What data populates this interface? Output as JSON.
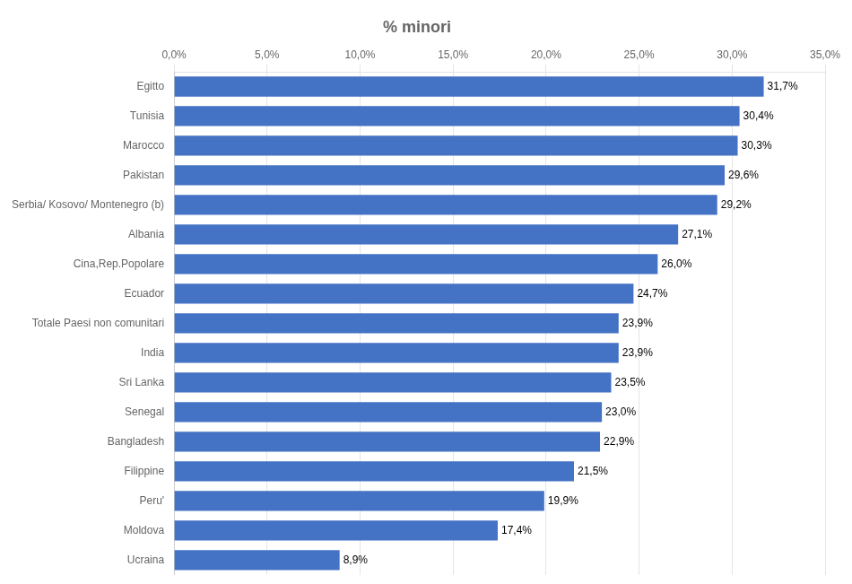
{
  "chart_data": {
    "type": "bar",
    "orientation": "horizontal",
    "title": "% minori",
    "categories": [
      "Ucraina",
      "Moldova",
      "Peru'",
      "Filippine",
      "Bangladesh",
      "Senegal",
      "Sri Lanka",
      "India",
      "Totale Paesi non comunitari",
      "Ecuador",
      "Cina,Rep.Popolare",
      "Albania",
      "Serbia/ Kosovo/ Montenegro (b)",
      "Pakistan",
      "Marocco",
      "Tunisia",
      "Egitto"
    ],
    "values": [
      8.9,
      17.4,
      19.9,
      21.5,
      22.9,
      23.0,
      23.5,
      23.9,
      23.9,
      24.7,
      26.0,
      27.1,
      29.2,
      29.6,
      30.3,
      30.4,
      31.7
    ],
    "value_labels": [
      "8,9%",
      "17,4%",
      "19,9%",
      "21,5%",
      "22,9%",
      "23,0%",
      "23,5%",
      "23,9%",
      "23,9%",
      "24,7%",
      "26,0%",
      "27,1%",
      "29,2%",
      "29,6%",
      "30,3%",
      "30,4%",
      "31,7%"
    ],
    "data_labels": true,
    "color": "#4472C4",
    "xlim": [
      0,
      35.0
    ],
    "xticks": [
      {
        "value": 0,
        "label": "0,0%"
      },
      {
        "value": 5.0,
        "label": "5,0%"
      },
      {
        "value": 10.0,
        "label": "10,0%"
      },
      {
        "value": 15.0,
        "label": "15,0%"
      },
      {
        "value": 20.0,
        "label": "20,0%"
      },
      {
        "value": 25.0,
        "label": "25,0%"
      },
      {
        "value": 30.0,
        "label": "30,0%"
      },
      {
        "value": 35.0,
        "label": "35,0%"
      }
    ],
    "grid": true
  }
}
